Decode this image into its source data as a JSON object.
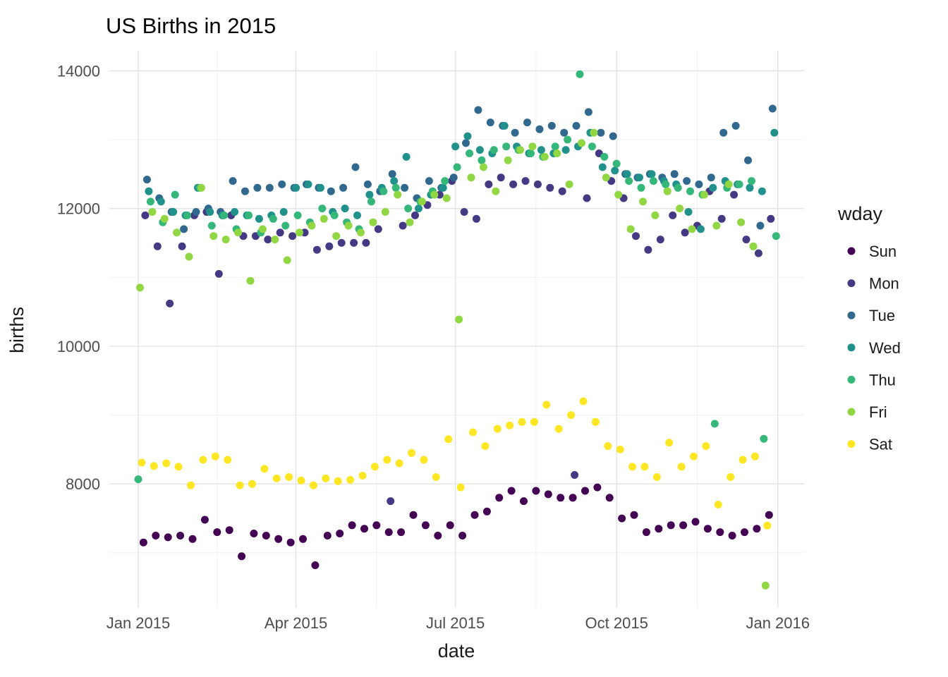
{
  "title": "US Births in 2015",
  "axes": {
    "x_label": "date",
    "y_label": "births",
    "x_ticks": [
      "Jan 2015",
      "Apr 2015",
      "Jul 2015",
      "Oct 2015",
      "Jan 2016"
    ],
    "y_ticks": [
      "8000",
      "10000",
      "12000",
      "14000"
    ]
  },
  "legend": {
    "title": "wday",
    "items": [
      {
        "label": "Sun",
        "color": "#440154"
      },
      {
        "label": "Mon",
        "color": "#443983"
      },
      {
        "label": "Tue",
        "color": "#31688e"
      },
      {
        "label": "Wed",
        "color": "#21918c"
      },
      {
        "label": "Thu",
        "color": "#35b779"
      },
      {
        "label": "Fri",
        "color": "#90d743"
      },
      {
        "label": "Sat",
        "color": "#fde725"
      }
    ]
  },
  "chart_data": {
    "type": "scatter",
    "title": "US Births in 2015",
    "xlabel": "date",
    "ylabel": "births",
    "x_unit": "day_of_year_2015",
    "x_step_days": 7,
    "x_domain": [
      -15.5,
      381
    ],
    "y_domain": [
      6200,
      14290
    ],
    "x_tick_days": [
      1,
      91,
      182,
      274,
      366
    ],
    "x_minor_days": [
      46,
      137,
      228,
      320
    ],
    "y_tick_values": [
      8000,
      10000,
      12000,
      14000
    ],
    "y_minor_values": [
      7000,
      9000,
      11000,
      13000
    ],
    "grid": true,
    "legend_position": "right",
    "series": [
      {
        "name": "Sun",
        "color": "#440154",
        "start_day": 4,
        "births": [
          7150,
          7250,
          7225,
          7250,
          7200,
          7480,
          7300,
          7330,
          6950,
          7280,
          7250,
          7200,
          7150,
          7200,
          6820,
          7250,
          7280,
          7400,
          7350,
          7400,
          7300,
          7300,
          7550,
          7400,
          7250,
          7400,
          7250,
          7550,
          7600,
          7800,
          7900,
          7750,
          7900,
          7850,
          7800,
          7800,
          7900,
          7950,
          7800,
          7500,
          7550,
          7300,
          7350,
          7400,
          7400,
          7450,
          7350,
          7300,
          7250,
          7300,
          7350,
          7550
        ]
      },
      {
        "name": "Mon",
        "color": "#443983",
        "start_day": 5,
        "births": [
          11900,
          11450,
          10620,
          11450,
          11900,
          11950,
          11050,
          11900,
          11600,
          11600,
          11550,
          11650,
          11600,
          11650,
          11400,
          11450,
          11500,
          11500,
          11500,
          11700,
          7750,
          11750,
          11900,
          12050,
          12200,
          12400,
          11950,
          11850,
          12350,
          12450,
          12350,
          12400,
          12350,
          12300,
          12250,
          8130,
          12150,
          12800,
          12400,
          12150,
          11600,
          11400,
          11550,
          11900,
          11650,
          11750,
          12250,
          11850,
          12200,
          11550,
          11350,
          11850
        ]
      },
      {
        "name": "Tue",
        "color": "#31688e",
        "start_day": 6,
        "births": [
          12420,
          12150,
          11950,
          11700,
          11950,
          12000,
          11950,
          12400,
          12250,
          12300,
          12300,
          12350,
          12300,
          12350,
          12300,
          12250,
          12300,
          12600,
          12350,
          12250,
          12500,
          12300,
          12150,
          12400,
          12300,
          12450,
          12950,
          13430,
          13250,
          13200,
          13100,
          13250,
          13150,
          13200,
          13100,
          13200,
          13400,
          13100,
          13050,
          12500,
          12450,
          12500,
          12450,
          12500,
          12400,
          12350,
          12450,
          13100,
          13200,
          12700,
          11750,
          13450
        ]
      },
      {
        "name": "Wed",
        "color": "#21918c",
        "start_day": 7,
        "births": [
          12250,
          12100,
          11950,
          11900,
          12300,
          11950,
          11900,
          11950,
          11900,
          11850,
          11900,
          11950,
          12300,
          12350,
          12300,
          11950,
          12000,
          11900,
          12200,
          12300,
          12400,
          12750,
          12000,
          12200,
          12300,
          12900,
          13050,
          12850,
          12800,
          13200,
          12900,
          12800,
          12850,
          12800,
          12850,
          12900,
          13100,
          12600,
          12550,
          12500,
          12450,
          12500,
          12400,
          12350,
          11950,
          11700,
          12300,
          12400,
          12350,
          12300,
          12250,
          13100
        ]
      },
      {
        "name": "Thu",
        "color": "#35b779",
        "start_day": 1,
        "births": [
          8068,
          12100,
          11800,
          12200,
          11900,
          12300,
          11750,
          11900,
          11700,
          11900,
          11650,
          11850,
          11750,
          11900,
          11800,
          12000,
          11900,
          11800,
          11700,
          12100,
          12250,
          12300,
          12000,
          12100,
          12250,
          12400,
          12600,
          12800,
          12700,
          12850,
          12900,
          12850,
          12800,
          12750,
          12900,
          13000,
          13950,
          12900,
          12750,
          12650,
          12400,
          12300,
          12400,
          12350,
          12300,
          12250,
          12200,
          8874,
          12300,
          12350,
          12400,
          8656,
          11600
        ]
      },
      {
        "name": "Fri",
        "color": "#90d743",
        "start_day": 2,
        "births": [
          10850,
          11950,
          11850,
          11650,
          11300,
          12300,
          11600,
          11550,
          11650,
          10950,
          11700,
          11550,
          11250,
          11650,
          11750,
          11850,
          11600,
          11750,
          11650,
          11800,
          11950,
          12200,
          11800,
          12100,
          12200,
          12150,
          10388,
          12450,
          12600,
          12250,
          12700,
          12850,
          12900,
          12750,
          12800,
          12350,
          12950,
          13100,
          12450,
          12200,
          11700,
          12100,
          11900,
          12250,
          12000,
          11700,
          12200,
          11750,
          12350,
          11800,
          11450,
          6525
        ]
      },
      {
        "name": "Sat",
        "color": "#fde725",
        "start_day": 3,
        "births": [
          8310,
          8260,
          8300,
          8250,
          7980,
          8350,
          8400,
          8350,
          7980,
          8000,
          8220,
          8080,
          8100,
          8050,
          7980,
          8080,
          8040,
          8060,
          8120,
          8250,
          8350,
          8300,
          8450,
          8350,
          8100,
          8650,
          7950,
          8750,
          8550,
          8800,
          8850,
          8900,
          8900,
          9150,
          8800,
          9000,
          9200,
          8900,
          8550,
          8500,
          8250,
          8250,
          8100,
          8600,
          8250,
          8400,
          8550,
          7700,
          8100,
          8350,
          8400,
          7395
        ]
      }
    ]
  }
}
